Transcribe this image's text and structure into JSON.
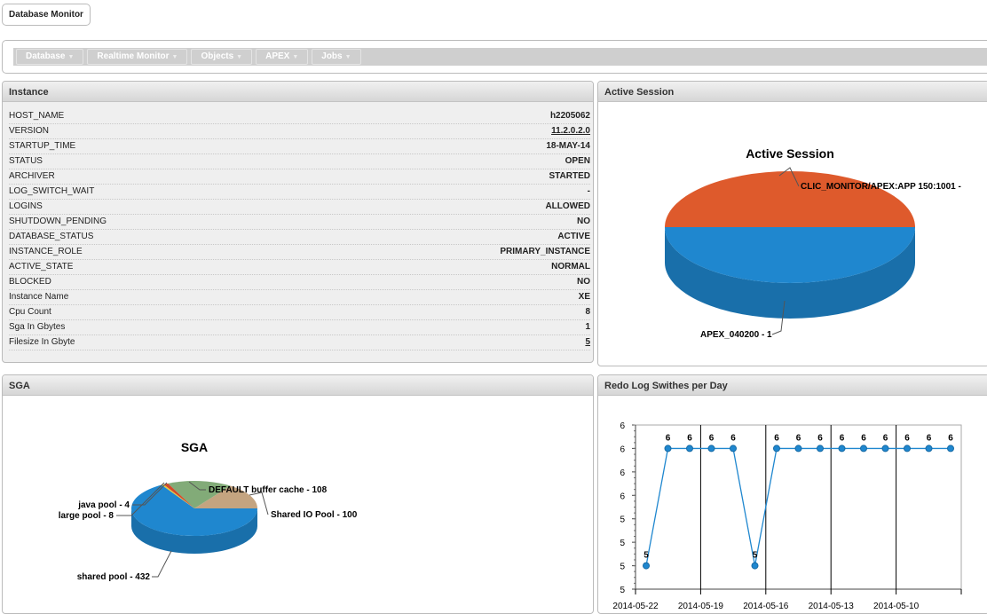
{
  "app": {
    "title": "Database Monitor"
  },
  "nav": [
    {
      "label": "Database"
    },
    {
      "label": "Realtime Monitor"
    },
    {
      "label": "Objects"
    },
    {
      "label": "APEX"
    },
    {
      "label": "Jobs"
    }
  ],
  "instance": {
    "title": "Instance",
    "rows": [
      {
        "k": "HOST_NAME",
        "v": "h2205062"
      },
      {
        "k": "VERSION",
        "v": "11.2.0.2.0",
        "link": true
      },
      {
        "k": "STARTUP_TIME",
        "v": "18-MAY-14"
      },
      {
        "k": "STATUS",
        "v": "OPEN"
      },
      {
        "k": "ARCHIVER",
        "v": "STARTED"
      },
      {
        "k": "LOG_SWITCH_WAIT",
        "v": "-"
      },
      {
        "k": "LOGINS",
        "v": "ALLOWED"
      },
      {
        "k": "SHUTDOWN_PENDING",
        "v": "NO"
      },
      {
        "k": "DATABASE_STATUS",
        "v": "ACTIVE"
      },
      {
        "k": "INSTANCE_ROLE",
        "v": "PRIMARY_INSTANCE"
      },
      {
        "k": "ACTIVE_STATE",
        "v": "NORMAL"
      },
      {
        "k": "BLOCKED",
        "v": "NO"
      },
      {
        "k": "Instance Name",
        "v": "XE"
      },
      {
        "k": "Cpu Count",
        "v": "8"
      },
      {
        "k": "Sga In Gbytes",
        "v": "1"
      },
      {
        "k": "Filesize In Gbyte",
        "v": "5",
        "link": true
      }
    ]
  },
  "active_session": {
    "title": "Active Session"
  },
  "sga": {
    "title": "SGA"
  },
  "redo": {
    "title": "Redo Log Swithes per Day"
  },
  "chart_data": [
    {
      "type": "pie",
      "title": "Active Session",
      "labels": [
        "CLIC_MONITOR/APEX:APP 150:1001",
        "APEX_040200"
      ],
      "values": [
        1,
        1
      ],
      "colors": [
        "#de5a2c",
        "#1f87cf"
      ],
      "data_labels": [
        "CLIC_MONITOR/APEX:APP 150:1001 - ",
        "APEX_040200 - 1"
      ]
    },
    {
      "type": "pie",
      "title": "SGA",
      "labels": [
        "Shared IO Pool",
        "DEFAULT buffer cache",
        "large pool",
        "java pool",
        "shared pool"
      ],
      "values": [
        100,
        108,
        8,
        4,
        432
      ],
      "colors": [
        "#c4a480",
        "#82ab78",
        "#d24a2a",
        "#e8c93a",
        "#1f87cf"
      ],
      "data_labels": [
        "Shared IO Pool - 100",
        "DEFAULT buffer cache - 108",
        "large pool - 8",
        "java pool - 4",
        "shared pool - 432"
      ]
    },
    {
      "type": "line",
      "values": [
        5,
        6,
        6,
        6,
        6,
        5,
        6,
        6,
        6,
        6,
        6,
        6,
        6,
        6,
        6
      ],
      "data_labels": [
        "5",
        "6",
        "6",
        "6",
        "6",
        "5",
        "6",
        "6",
        "6",
        "6",
        "6",
        "6",
        "6",
        "6",
        "6"
      ],
      "ylim": [
        4.8,
        6.2
      ],
      "yticks": [
        6.2,
        6.0,
        5.8,
        5.6,
        5.4,
        5.2,
        5.0,
        4.8
      ],
      "ytick_labels": [
        "6",
        "6",
        "6",
        "6",
        "5",
        "5",
        "5",
        "5"
      ],
      "xtick_labels": [
        "2014-05-22",
        "2014-05-19",
        "2014-05-16",
        "2014-05-13",
        "2014-05-10"
      ],
      "color": "#1f87cf"
    }
  ]
}
